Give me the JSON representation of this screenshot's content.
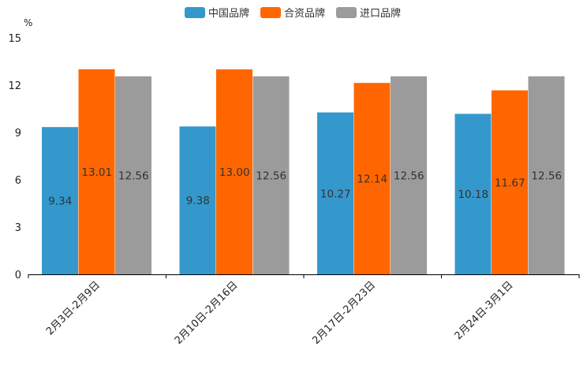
{
  "chart_data": {
    "type": "bar",
    "unit": "%",
    "categories": [
      "2月3日-2月9日",
      "2月10日-2月16日",
      "2月17日-2月23日",
      "2月24日-3月1日"
    ],
    "series": [
      {
        "name": "中国品牌",
        "color": "#3498cc",
        "values": [
          9.34,
          9.38,
          10.27,
          10.18
        ],
        "labels": [
          "9.34",
          "9.38",
          "10.27",
          "10.18"
        ]
      },
      {
        "name": "合资品牌",
        "color": "#ff6600",
        "values": [
          13.01,
          13.0,
          12.14,
          11.67
        ],
        "labels": [
          "13.01",
          "13.00",
          "12.14",
          "11.67"
        ]
      },
      {
        "name": "进口品牌",
        "color": "#9b9b9b",
        "values": [
          12.56,
          12.56,
          12.56,
          12.56
        ],
        "labels": [
          "12.56",
          "12.56",
          "12.56",
          "12.56"
        ]
      }
    ],
    "ylim": [
      0,
      15
    ],
    "yticks": [
      "0",
      "3",
      "6",
      "9",
      "12",
      "15"
    ],
    "grid": false,
    "legend": "top-center"
  }
}
